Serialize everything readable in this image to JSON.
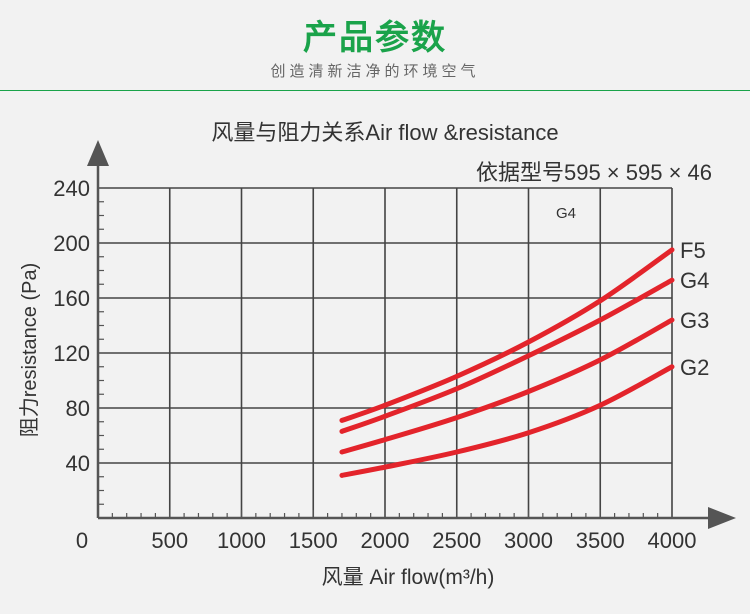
{
  "header": {
    "title": "产品参数",
    "subtitle": "创造清新洁净的环境空气"
  },
  "colors": {
    "accent": "#1aa34a",
    "curve": "#e3242b",
    "grid": "#444444",
    "text": "#333333"
  },
  "chart_data": {
    "type": "line",
    "title": "风量与阻力关系Air flow &resistance",
    "subtitle": "依据型号595 × 595 × 46",
    "annotation": "G4",
    "xlabel": "风量 Air flow(m³/h)",
    "ylabel": "阻力resistance (Pa)",
    "xlim": [
      0,
      4000
    ],
    "ylim": [
      0,
      240
    ],
    "x_ticks": [
      0,
      500,
      1000,
      1500,
      2000,
      2500,
      3000,
      3500,
      4000
    ],
    "y_ticks": [
      40,
      80,
      120,
      160,
      200,
      240
    ],
    "grid": true,
    "series": [
      {
        "name": "F5",
        "x": [
          1700,
          2000,
          2500,
          3000,
          3500,
          4000
        ],
        "y": [
          71,
          82,
          103,
          128,
          158,
          195
        ]
      },
      {
        "name": "G4",
        "x": [
          1700,
          2000,
          2500,
          3000,
          3500,
          4000
        ],
        "y": [
          63,
          74,
          94,
          118,
          144,
          173
        ]
      },
      {
        "name": "G3",
        "x": [
          1700,
          2000,
          2500,
          3000,
          3500,
          4000
        ],
        "y": [
          48,
          57,
          73,
          92,
          115,
          144
        ]
      },
      {
        "name": "G2",
        "x": [
          1700,
          2000,
          2500,
          3000,
          3500,
          4000
        ],
        "y": [
          31,
          37,
          48,
          62,
          82,
          110
        ]
      }
    ]
  }
}
